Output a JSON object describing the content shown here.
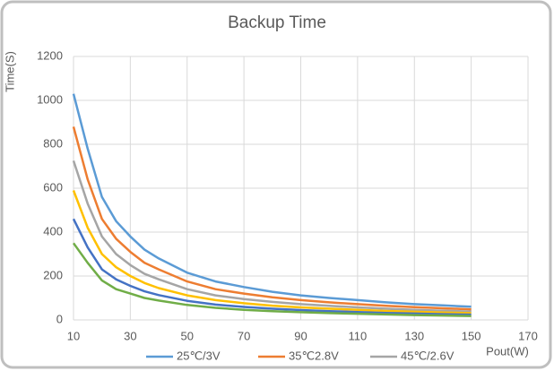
{
  "chart_data": {
    "type": "line",
    "title": "Backup Time",
    "x_label": "Pout(W)",
    "y_label": "Time(S)",
    "x": [
      10,
      15,
      20,
      25,
      30,
      35,
      40,
      50,
      60,
      70,
      80,
      90,
      100,
      110,
      120,
      130,
      140,
      150
    ],
    "series": [
      {
        "name": "25℃/3V",
        "color": "#5b9bd5",
        "values": [
          1030,
          780,
          560,
          450,
          380,
          320,
          280,
          215,
          175,
          150,
          128,
          112,
          100,
          90,
          80,
          72,
          66,
          60
        ]
      },
      {
        "name": "35℃2.8V",
        "color": "#ed7d31",
        "values": [
          880,
          640,
          460,
          370,
          310,
          260,
          230,
          175,
          140,
          120,
          103,
          90,
          80,
          72,
          64,
          58,
          53,
          48
        ]
      },
      {
        "name": "45℃/2.6V",
        "color": "#a5a5a5",
        "values": [
          725,
          530,
          380,
          300,
          250,
          210,
          185,
          140,
          112,
          95,
          82,
          72,
          64,
          57,
          51,
          46,
          42,
          38
        ]
      },
      {
        "color": "#ffc000",
        "values": [
          590,
          420,
          300,
          240,
          200,
          168,
          145,
          112,
          90,
          76,
          65,
          57,
          51,
          46,
          41,
          37,
          34,
          31
        ]
      },
      {
        "color": "#4472c4",
        "values": [
          460,
          330,
          230,
          185,
          155,
          130,
          113,
          87,
          70,
          59,
          51,
          45,
          40,
          36,
          32,
          29,
          26,
          24
        ]
      },
      {
        "color": "#70ad47",
        "values": [
          350,
          260,
          180,
          140,
          120,
          100,
          88,
          68,
          55,
          46,
          40,
          35,
          31,
          28,
          25,
          22,
          20,
          18
        ]
      }
    ],
    "xlim": [
      10,
      170
    ],
    "xticks": [
      10,
      30,
      50,
      70,
      90,
      110,
      130,
      150,
      170
    ],
    "ylim": [
      0,
      1200
    ],
    "yticks": [
      0,
      200,
      400,
      600,
      800,
      1000,
      1200
    ],
    "grid": true,
    "legend": "bottom"
  }
}
